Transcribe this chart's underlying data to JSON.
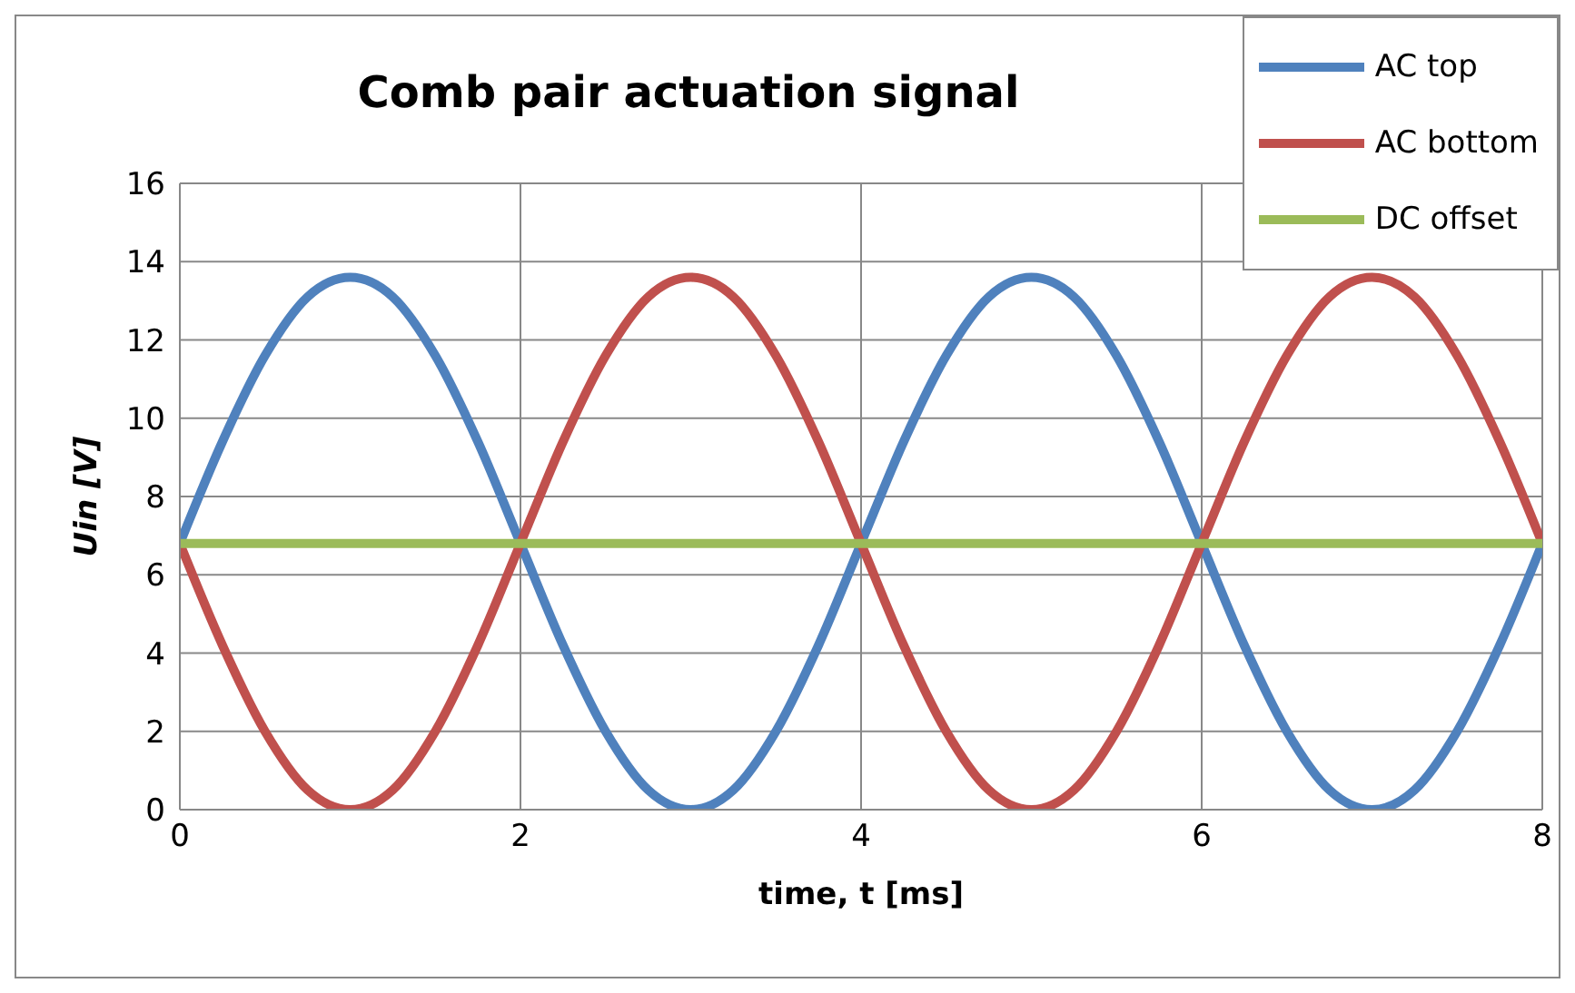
{
  "chart_data": {
    "type": "line",
    "title": "Comb pair actuation signal",
    "xlabel": "time, t [ms]",
    "ylabel": "Uin [V]",
    "x": [
      0,
      0.25,
      0.5,
      0.75,
      1,
      1.25,
      1.5,
      1.75,
      2,
      2.25,
      2.5,
      2.75,
      3,
      3.25,
      3.5,
      3.75,
      4,
      4.25,
      4.5,
      4.75,
      5,
      5.25,
      5.5,
      5.75,
      6,
      6.25,
      6.5,
      6.75,
      7,
      7.25,
      7.5,
      7.75,
      8
    ],
    "series": [
      {
        "name": "AC top",
        "color": "#4f81bd",
        "values": [
          6.8,
          9.4,
          11.6,
          13.1,
          13.6,
          13.1,
          11.6,
          9.4,
          6.8,
          4.2,
          2.0,
          0.5,
          0,
          0.5,
          2.0,
          4.2,
          6.8,
          9.4,
          11.6,
          13.1,
          13.6,
          13.1,
          11.6,
          9.4,
          6.8,
          4.2,
          2.0,
          0.5,
          0,
          0.5,
          2.0,
          4.2,
          6.8
        ]
      },
      {
        "name": "AC bottom",
        "color": "#c0504d",
        "values": [
          6.8,
          4.2,
          2.0,
          0.5,
          0,
          0.5,
          2.0,
          4.2,
          6.8,
          9.4,
          11.6,
          13.1,
          13.6,
          13.1,
          11.6,
          9.4,
          6.8,
          4.2,
          2.0,
          0.5,
          0,
          0.5,
          2.0,
          4.2,
          6.8,
          9.4,
          11.6,
          13.1,
          13.6,
          13.1,
          11.6,
          9.4,
          6.8
        ]
      },
      {
        "name": "DC offset",
        "color": "#9bbb59",
        "values": [
          6.8,
          6.8,
          6.8,
          6.8,
          6.8,
          6.8,
          6.8,
          6.8,
          6.8,
          6.8,
          6.8,
          6.8,
          6.8,
          6.8,
          6.8,
          6.8,
          6.8,
          6.8,
          6.8,
          6.8,
          6.8,
          6.8,
          6.8,
          6.8,
          6.8,
          6.8,
          6.8,
          6.8,
          6.8,
          6.8,
          6.8,
          6.8,
          6.8
        ]
      }
    ],
    "xlim": [
      0,
      8
    ],
    "xticks": [
      0,
      2,
      4,
      6,
      8
    ],
    "ylim": [
      0,
      16
    ],
    "yticks": [
      0,
      2,
      4,
      6,
      8,
      10,
      12,
      14,
      16
    ],
    "grid": true,
    "legend": "top right",
    "marker": "none",
    "line_style": "solid"
  }
}
